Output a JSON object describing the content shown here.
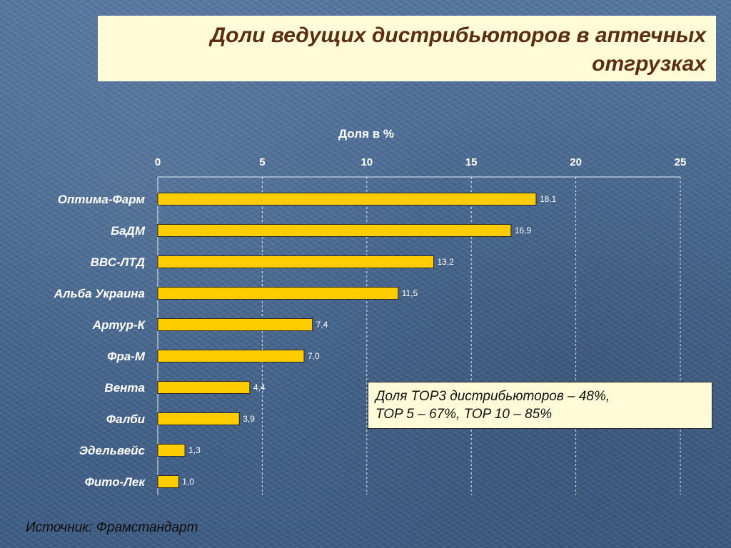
{
  "slide": {
    "title_line1": "Доли ведущих дистрибьюторов в аптечных",
    "title_line2": "отгрузках",
    "note_line1": "Доля TOP3 дистрибьюторов – 48%,",
    "note_line2": "TOP 5 – 67%, TOP 10 – 85%",
    "source": "Источник: Фрамстандарт"
  },
  "colors": {
    "bar_fill": "#ffcc00",
    "bar_stroke": "#2a2a2a",
    "title_text": "#5a2d14",
    "label_text": "#ffffff",
    "box_bg": "#fdfbd8"
  },
  "chart_data": {
    "type": "bar",
    "orientation": "horizontal",
    "axis_title": "Доля в %",
    "x_ticks": [
      "0",
      "5",
      "10",
      "15",
      "20",
      "25"
    ],
    "xlim": [
      0,
      25
    ],
    "grid": "vertical dashed",
    "axis_position": "top",
    "categories": [
      "Оптима-Фарм",
      "БаДМ",
      "ВВС-ЛТД",
      "Альба Украина",
      "Артур-К",
      "Фра-М",
      "Вента",
      "Фалби",
      "Эдельвейс",
      "Фито-Лек"
    ],
    "values": [
      18.1,
      16.9,
      13.2,
      11.5,
      7.4,
      7.0,
      4.4,
      3.9,
      1.3,
      1.0
    ],
    "value_labels": [
      "18,1",
      "16,9",
      "13,2",
      "11,5",
      "7,4",
      "7,0",
      "4,4",
      "3,9",
      "1,3",
      "1,0"
    ]
  }
}
